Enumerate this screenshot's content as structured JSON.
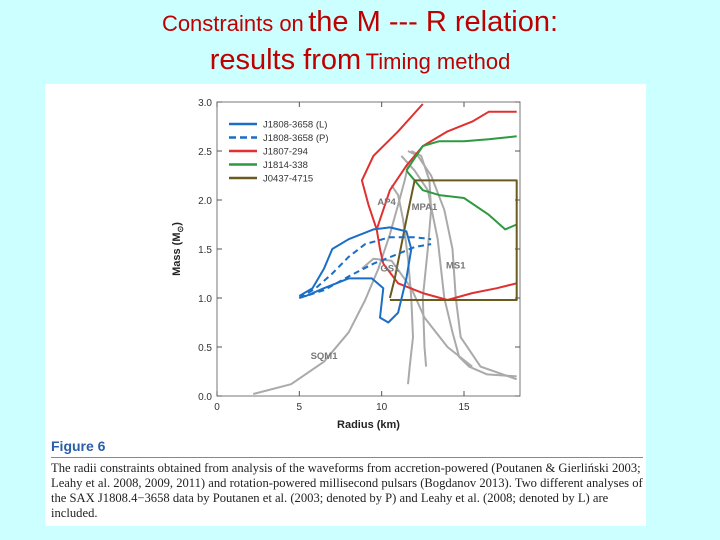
{
  "slide": {
    "title_line1": {
      "part1": "Constraints on",
      "part2": "the M --- R relation:"
    },
    "title_line2": {
      "part1": "results from",
      "part2": "Timing method"
    },
    "title_color": "#c00000",
    "background_color": "#ccffff"
  },
  "figure": {
    "label": "Figure 6",
    "caption": "The radii constraints obtained from analysis of the waveforms from accretion-powered (Poutanen & Gierliński 2003; Leahy et al. 2008, 2009, 2011) and rotation-powered millisecond pulsars (Bogdanov 2013). Two different analyses of the SAX J1808.4−3658 data by Poutanen et al. (2003; denoted by P) and Leahy et al. (2008; denoted by L) are included."
  },
  "chart_data": {
    "type": "line",
    "xlabel": "Radius (km)",
    "ylabel": "Mass (M",
    "ylabel_sub": "⊙",
    "ylabel_end": ")",
    "xlim": [
      0,
      18.4
    ],
    "ylim": [
      0,
      3.0
    ],
    "xticks": [
      0,
      5,
      10,
      15
    ],
    "yticks": [
      0.0,
      0.5,
      1.0,
      1.5,
      2.0,
      2.5,
      3.0
    ],
    "xtick_labels": [
      "0",
      "5",
      "10",
      "15"
    ],
    "ytick_labels": [
      "0.0",
      "0.5",
      "1.0",
      "1.5",
      "2.0",
      "2.5",
      "3.0"
    ],
    "legend_position": "top-left",
    "legend": [
      {
        "name": "J1808-3658 (L)",
        "color": "#1a6fc4",
        "dash": "solid"
      },
      {
        "name": "J1808-3658 (P)",
        "color": "#1a6fc4",
        "dash": "dashed"
      },
      {
        "name": "J1807-294",
        "color": "#e03030",
        "dash": "solid"
      },
      {
        "name": "J1814-338",
        "color": "#2e9a40",
        "dash": "solid"
      },
      {
        "name": "J0437-4715",
        "color": "#6b5a1e",
        "dash": "solid"
      }
    ],
    "eos_labels": [
      {
        "text": "AP4",
        "x": 10.3,
        "y": 1.95
      },
      {
        "text": "MPA1",
        "x": 12.6,
        "y": 1.9
      },
      {
        "text": "GS1",
        "x": 10.5,
        "y": 1.27
      },
      {
        "text": "MS1",
        "x": 14.5,
        "y": 1.3
      },
      {
        "text": "SQM1",
        "x": 6.5,
        "y": 0.38
      }
    ],
    "eos_curves": [
      {
        "name": "AP4",
        "color": "#aaaaaa",
        "points": [
          [
            11.6,
            0.12
          ],
          [
            11.7,
            0.3
          ],
          [
            11.9,
            0.6
          ],
          [
            11.8,
            1.0
          ],
          [
            11.6,
            1.4
          ],
          [
            11.3,
            1.8
          ],
          [
            11.0,
            2.05
          ],
          [
            10.6,
            2.15
          ]
        ]
      },
      {
        "name": "MPA1",
        "color": "#aaaaaa",
        "points": [
          [
            12.7,
            0.3
          ],
          [
            12.6,
            0.5
          ],
          [
            12.5,
            1.0
          ],
          [
            12.8,
            1.5
          ],
          [
            13.0,
            1.9
          ],
          [
            12.9,
            2.2
          ],
          [
            12.4,
            2.45
          ],
          [
            11.8,
            2.5
          ]
        ]
      },
      {
        "name": "GS1",
        "color": "#aaaaaa",
        "points": [
          [
            15.5,
            0.3
          ],
          [
            14.0,
            0.5
          ],
          [
            12.6,
            0.8
          ],
          [
            11.8,
            1.1
          ],
          [
            10.6,
            1.38
          ],
          [
            9.5,
            1.4
          ],
          [
            8.8,
            1.3
          ]
        ]
      },
      {
        "name": "MS1",
        "color": "#aaaaaa",
        "points": [
          [
            18.2,
            0.17
          ],
          [
            16.0,
            0.3
          ],
          [
            14.8,
            0.6
          ],
          [
            14.5,
            1.0
          ],
          [
            14.3,
            1.5
          ],
          [
            13.8,
            1.9
          ],
          [
            13.0,
            2.25
          ],
          [
            12.2,
            2.45
          ],
          [
            11.6,
            2.5
          ]
        ]
      },
      {
        "name": "SQM1",
        "color": "#aaaaaa",
        "points": [
          [
            2.2,
            0.02
          ],
          [
            4.5,
            0.12
          ],
          [
            6.5,
            0.35
          ],
          [
            8.0,
            0.65
          ],
          [
            9.0,
            0.98
          ],
          [
            9.8,
            1.3
          ],
          [
            10.5,
            1.65
          ],
          [
            11.0,
            1.95
          ],
          [
            11.4,
            2.2
          ],
          [
            11.6,
            2.35
          ]
        ]
      },
      {
        "name": "outer",
        "color": "#aaaaaa",
        "points": [
          [
            18.2,
            0.2
          ],
          [
            16.4,
            0.22
          ],
          [
            15.3,
            0.3
          ],
          [
            14.7,
            0.4
          ],
          [
            14.3,
            0.65
          ],
          [
            13.8,
            1.0
          ],
          [
            13.6,
            1.3
          ],
          [
            13.4,
            1.6
          ],
          [
            13.1,
            1.85
          ],
          [
            12.8,
            2.1
          ],
          [
            12.0,
            2.3
          ],
          [
            11.2,
            2.45
          ]
        ]
      }
    ],
    "series": [
      {
        "name": "J1807-294",
        "color": "#e03030",
        "dash": "solid",
        "points": [
          [
            10.1,
            1.35
          ],
          [
            9.9,
            1.5
          ],
          [
            9.7,
            1.7
          ],
          [
            10.5,
            2.1
          ],
          [
            11.5,
            2.35
          ],
          [
            12.5,
            2.55
          ],
          [
            14.0,
            2.7
          ],
          [
            15.5,
            2.8
          ],
          [
            16.5,
            2.9
          ],
          [
            18.2,
            2.9
          ]
        ]
      },
      {
        "name": "J1807-294",
        "color": "#e03030",
        "dash": "solid",
        "points": [
          [
            10.1,
            1.35
          ],
          [
            11.0,
            1.15
          ],
          [
            12.5,
            1.05
          ],
          [
            14.0,
            0.98
          ],
          [
            15.5,
            1.05
          ],
          [
            17.0,
            1.1
          ],
          [
            18.2,
            1.15
          ]
        ]
      },
      {
        "name": "J1807-294",
        "color": "#e03030",
        "dash": "solid",
        "points": [
          [
            9.7,
            1.7
          ],
          [
            9.2,
            1.95
          ],
          [
            8.8,
            2.2
          ],
          [
            9.5,
            2.45
          ],
          [
            11.0,
            2.7
          ],
          [
            12.5,
            2.98
          ]
        ]
      },
      {
        "name": "J1814-338",
        "color": "#2e9a40",
        "dash": "solid",
        "points": [
          [
            11.5,
            2.3
          ],
          [
            12.5,
            2.55
          ],
          [
            13.5,
            2.6
          ],
          [
            15.0,
            2.6
          ],
          [
            16.5,
            2.62
          ],
          [
            18.2,
            2.65
          ]
        ]
      },
      {
        "name": "J1814-338",
        "color": "#2e9a40",
        "dash": "solid",
        "points": [
          [
            11.5,
            2.3
          ],
          [
            12.5,
            2.1
          ],
          [
            13.5,
            2.05
          ],
          [
            15.0,
            2.02
          ],
          [
            16.5,
            1.85
          ],
          [
            17.5,
            1.7
          ],
          [
            18.2,
            1.75
          ]
        ]
      },
      {
        "name": "J0437-4715",
        "color": "#6b5a1e",
        "dash": "solid",
        "points": [
          [
            10.5,
            1.0
          ],
          [
            10.8,
            1.2
          ],
          [
            11.5,
            1.8
          ],
          [
            12.0,
            2.2
          ],
          [
            18.2,
            2.2
          ],
          [
            18.2,
            0.98
          ],
          [
            10.5,
            0.98
          ]
        ]
      },
      {
        "name": "J1808-3658 (L)",
        "color": "#1a6fc4",
        "dash": "solid",
        "points": [
          [
            5.0,
            1.02
          ],
          [
            5.8,
            1.1
          ],
          [
            6.5,
            1.3
          ],
          [
            7.0,
            1.5
          ],
          [
            8.0,
            1.6
          ],
          [
            9.5,
            1.7
          ],
          [
            10.5,
            1.72
          ],
          [
            11.5,
            1.68
          ],
          [
            11.8,
            1.5
          ],
          [
            11.5,
            1.2
          ],
          [
            11.0,
            0.85
          ],
          [
            10.4,
            0.75
          ],
          [
            9.9,
            0.8
          ],
          [
            10.1,
            1.1
          ],
          [
            9.4,
            1.2
          ],
          [
            8.0,
            1.2
          ],
          [
            6.5,
            1.1
          ],
          [
            5.4,
            1.02
          ],
          [
            5.0,
            1.02
          ]
        ]
      },
      {
        "name": "J1808-3658 (P)",
        "color": "#1a6fc4",
        "dash": "dashed",
        "points": [
          [
            5.0,
            1.0
          ],
          [
            6.0,
            1.1
          ],
          [
            7.0,
            1.25
          ],
          [
            8.0,
            1.42
          ],
          [
            9.0,
            1.55
          ],
          [
            10.5,
            1.62
          ],
          [
            12.0,
            1.62
          ],
          [
            13.0,
            1.6
          ]
        ]
      },
      {
        "name": "J1808-3658 (P)",
        "color": "#1a6fc4",
        "dash": "dashed",
        "points": [
          [
            5.0,
            1.0
          ],
          [
            6.5,
            1.08
          ],
          [
            8.0,
            1.22
          ],
          [
            9.5,
            1.35
          ],
          [
            11.0,
            1.45
          ],
          [
            12.0,
            1.52
          ],
          [
            13.0,
            1.55
          ]
        ]
      }
    ]
  }
}
